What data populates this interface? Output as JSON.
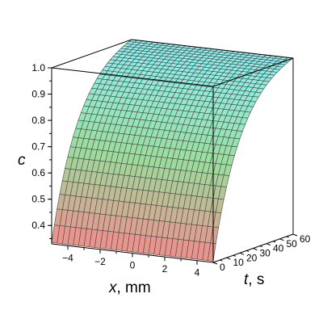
{
  "chart_data": {
    "type": "surface",
    "title": "",
    "x_axis": {
      "label_var": "x",
      "label_unit": ", mm",
      "range": [
        -5,
        5
      ],
      "ticks": [
        -4,
        -2,
        0,
        2,
        4
      ]
    },
    "t_axis": {
      "label_var": "t",
      "label_unit": ", s",
      "range": [
        0,
        60
      ],
      "ticks": [
        0,
        10,
        20,
        30,
        40,
        50,
        60
      ]
    },
    "c_axis": {
      "label_var": "c",
      "range": [
        0.33,
        1.0
      ],
      "ticks": [
        "1.0",
        "0.9",
        "0.8",
        "0.7",
        "0.6",
        "0.5",
        "0.4"
      ],
      "tick_values": [
        1.0,
        0.9,
        0.8,
        0.7,
        0.6,
        0.5,
        0.4
      ]
    },
    "surface": {
      "description_points": [
        {
          "x": -5,
          "t": 0,
          "c": 0.34
        },
        {
          "x": 0,
          "t": 0,
          "c": 0.34
        },
        {
          "x": 5,
          "t": 0,
          "c": 0.34
        },
        {
          "x": -5,
          "t": 60,
          "c": 1.0
        },
        {
          "x": 0,
          "t": 60,
          "c": 1.0
        },
        {
          "x": 5,
          "t": 60,
          "c": 1.0
        }
      ],
      "colormap": [
        "#f08080",
        "#90d890",
        "#7ff0f0"
      ]
    },
    "grid": false
  }
}
